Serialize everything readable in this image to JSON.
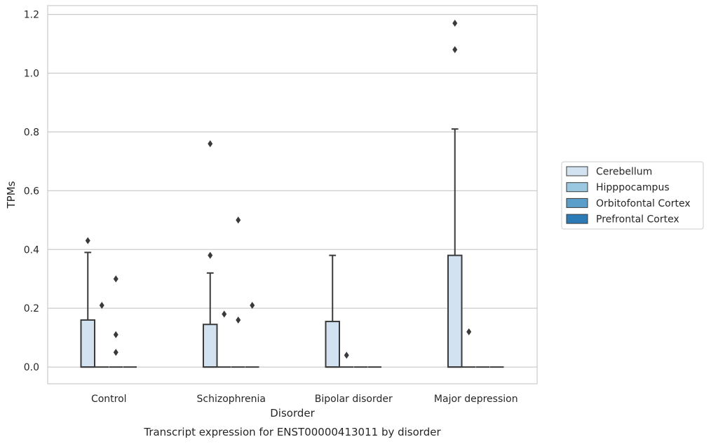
{
  "chart_data": {
    "type": "box",
    "caption": "Transcript expression for ENST00000413011 by disorder",
    "xlabel": "Disorder",
    "ylabel": "TPMs",
    "ylim": [
      -0.057,
      1.23
    ],
    "yticks": [
      "0.0",
      "0.2",
      "0.4",
      "0.6",
      "0.8",
      "1.0",
      "1.2"
    ],
    "grid": true,
    "legend_position": "right",
    "categories": [
      "Control",
      "Schizophrenia",
      "Bipolar disorder",
      "Major depression"
    ],
    "series": [
      {
        "name": "Cerebellum",
        "color": "#d2e2f1",
        "boxes": [
          {
            "q1": 0,
            "median": 0,
            "q3": 0.16,
            "whisker_low": 0,
            "whisker_high": 0.39,
            "outliers": [
              0.43
            ]
          },
          {
            "q1": 0,
            "median": 0,
            "q3": 0.145,
            "whisker_low": 0,
            "whisker_high": 0.32,
            "outliers": [
              0.38,
              0.76
            ]
          },
          {
            "q1": 0,
            "median": 0,
            "q3": 0.155,
            "whisker_low": 0,
            "whisker_high": 0.38,
            "outliers": []
          },
          {
            "q1": 0,
            "median": 0,
            "q3": 0.38,
            "whisker_low": 0,
            "whisker_high": 0.81,
            "outliers": [
              1.08,
              1.17
            ]
          }
        ]
      },
      {
        "name": "Hipppocampus",
        "color": "#9ac8e0",
        "boxes": [
          {
            "q1": 0,
            "median": 0,
            "q3": 0,
            "whisker_low": 0,
            "whisker_high": 0,
            "outliers": [
              0.21
            ]
          },
          {
            "q1": 0,
            "median": 0,
            "q3": 0,
            "whisker_low": 0,
            "whisker_high": 0,
            "outliers": [
              0.18
            ]
          },
          {
            "q1": 0,
            "median": 0,
            "q3": 0,
            "whisker_low": 0,
            "whisker_high": 0,
            "outliers": [
              0.04
            ]
          },
          {
            "q1": 0,
            "median": 0,
            "q3": 0,
            "whisker_low": 0,
            "whisker_high": 0,
            "outliers": [
              0.12
            ]
          }
        ]
      },
      {
        "name": "Orbitofontal Cortex",
        "color": "#5a9ec9",
        "boxes": [
          {
            "q1": 0,
            "median": 0,
            "q3": 0,
            "whisker_low": 0,
            "whisker_high": 0,
            "outliers": [
              0.05,
              0.11,
              0.3
            ]
          },
          {
            "q1": 0,
            "median": 0,
            "q3": 0,
            "whisker_low": 0,
            "whisker_high": 0,
            "outliers": [
              0.16,
              0.5
            ]
          },
          {
            "q1": 0,
            "median": 0,
            "q3": 0,
            "whisker_low": 0,
            "whisker_high": 0,
            "outliers": []
          },
          {
            "q1": 0,
            "median": 0,
            "q3": 0,
            "whisker_low": 0,
            "whisker_high": 0,
            "outliers": []
          }
        ]
      },
      {
        "name": "Prefrontal Cortex",
        "color": "#2d7bb6",
        "boxes": [
          {
            "q1": 0,
            "median": 0,
            "q3": 0,
            "whisker_low": 0,
            "whisker_high": 0,
            "outliers": []
          },
          {
            "q1": 0,
            "median": 0,
            "q3": 0,
            "whisker_low": 0,
            "whisker_high": 0,
            "outliers": [
              0.21
            ]
          },
          {
            "q1": 0,
            "median": 0,
            "q3": 0,
            "whisker_low": 0,
            "whisker_high": 0,
            "outliers": []
          },
          {
            "q1": 0,
            "median": 0,
            "q3": 0,
            "whisker_low": 0,
            "whisker_high": 0,
            "outliers": []
          }
        ]
      }
    ]
  }
}
